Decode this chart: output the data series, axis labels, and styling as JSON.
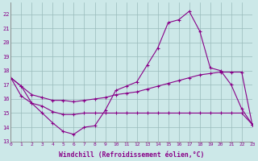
{
  "bg_color": "#cce8e8",
  "line_color": "#880088",
  "grid_color": "#99bbbb",
  "xlabel": "Windchill (Refroidissement éolien,°C)",
  "xlim": [
    0,
    23
  ],
  "ylim": [
    13,
    22.8
  ],
  "yticks": [
    13,
    14,
    15,
    16,
    17,
    18,
    19,
    20,
    21,
    22
  ],
  "xticks": [
    0,
    1,
    2,
    3,
    4,
    5,
    6,
    7,
    8,
    9,
    10,
    11,
    12,
    13,
    14,
    15,
    16,
    17,
    18,
    19,
    20,
    21,
    22,
    23
  ],
  "line1_x": [
    0,
    1,
    2,
    3,
    4,
    5,
    6,
    7,
    8,
    9,
    10,
    11,
    12,
    13,
    14,
    15,
    16,
    17,
    18,
    19,
    20,
    21,
    22,
    23
  ],
  "line1_y": [
    17.5,
    16.9,
    15.7,
    15.0,
    14.3,
    13.7,
    13.5,
    14.0,
    14.1,
    15.2,
    16.6,
    16.9,
    17.2,
    18.4,
    19.6,
    21.4,
    21.6,
    22.2,
    20.8,
    18.2,
    18.0,
    17.0,
    15.3,
    14.2
  ],
  "line2_x": [
    0,
    1,
    2,
    3,
    4,
    5,
    6,
    7,
    8,
    9,
    10,
    11,
    12,
    13,
    14,
    15,
    16,
    17,
    18,
    19,
    20,
    21,
    22,
    23
  ],
  "line2_y": [
    17.5,
    16.9,
    16.3,
    16.1,
    15.9,
    15.9,
    15.8,
    15.9,
    16.0,
    16.1,
    16.3,
    16.4,
    16.5,
    16.7,
    16.9,
    17.1,
    17.3,
    17.5,
    17.7,
    17.8,
    17.9,
    17.9,
    17.9,
    14.2
  ],
  "line3_x": [
    0,
    1,
    2,
    3,
    4,
    5,
    6,
    7,
    8,
    9,
    10,
    11,
    12,
    13,
    14,
    15,
    16,
    17,
    18,
    19,
    20,
    21,
    22,
    23
  ],
  "line3_y": [
    17.5,
    16.2,
    15.7,
    15.5,
    15.1,
    14.9,
    14.9,
    15.0,
    15.0,
    15.0,
    15.0,
    15.0,
    15.0,
    15.0,
    15.0,
    15.0,
    15.0,
    15.0,
    15.0,
    15.0,
    15.0,
    15.0,
    15.0,
    14.2
  ]
}
